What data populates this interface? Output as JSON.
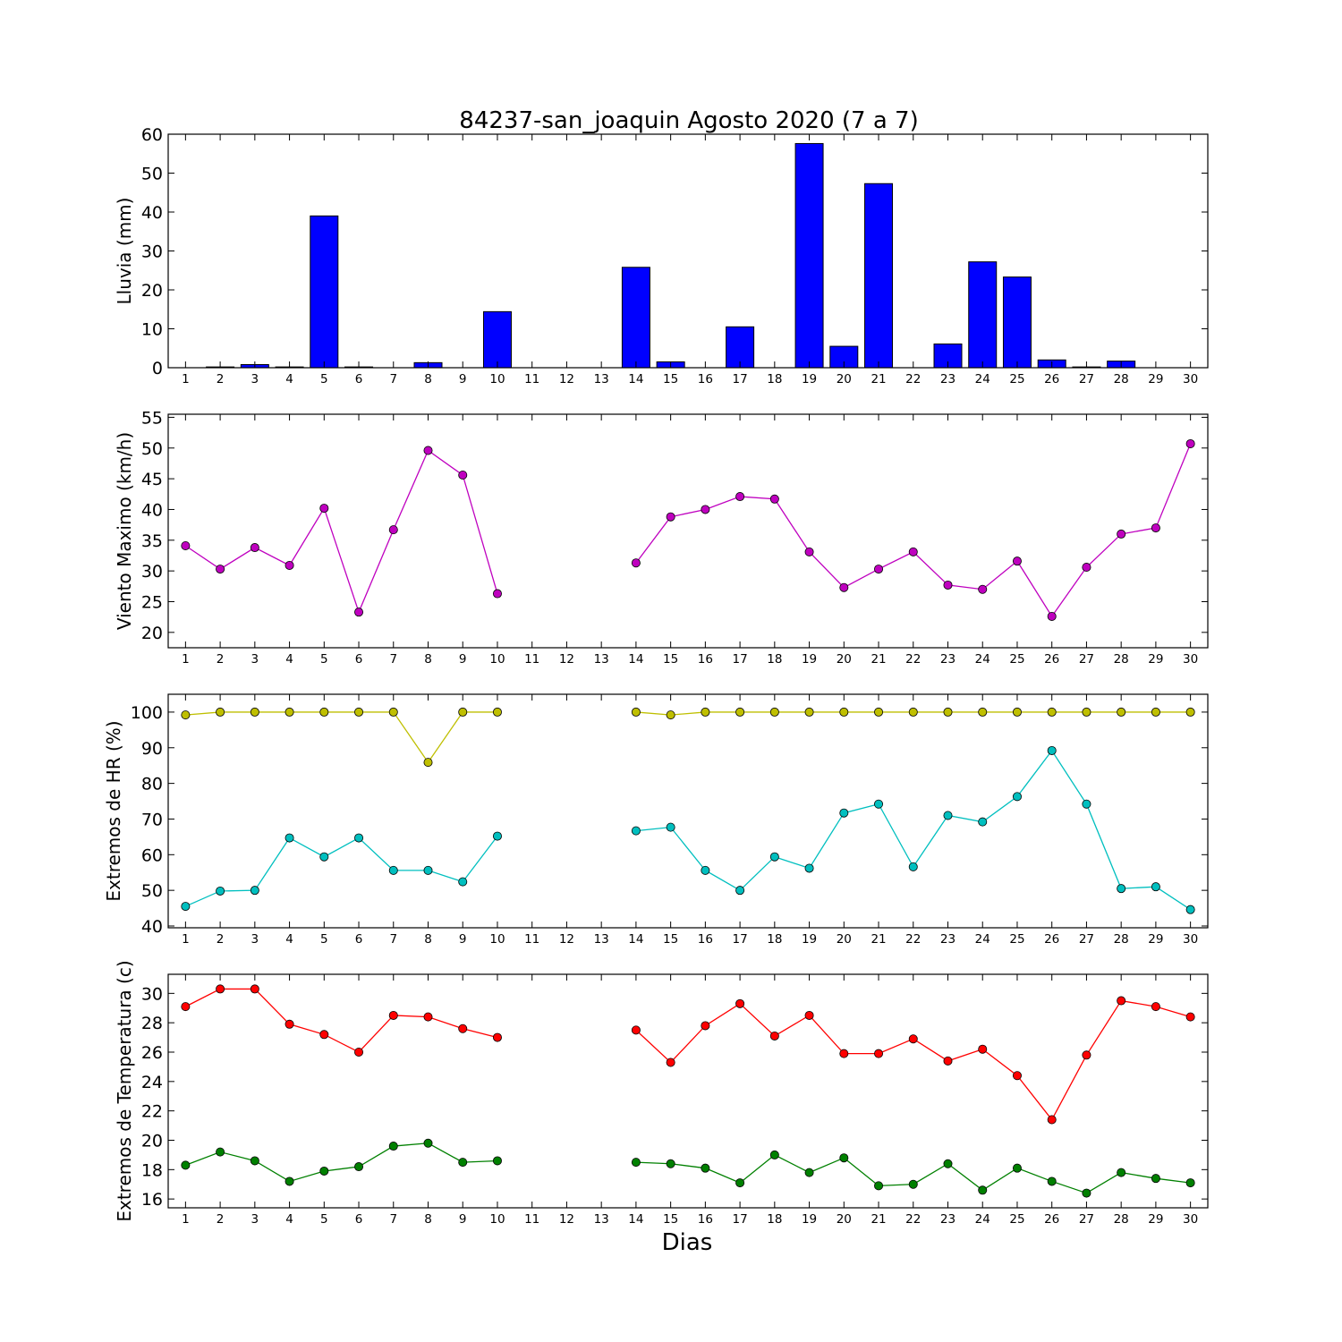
{
  "chart_data": {
    "title": "84237-san_joaquin Agosto 2020  (7 a 7)",
    "xlabel": "Dias",
    "days": [
      1,
      2,
      3,
      4,
      5,
      6,
      7,
      8,
      9,
      10,
      11,
      12,
      13,
      14,
      15,
      16,
      17,
      18,
      19,
      20,
      21,
      22,
      23,
      24,
      25,
      26,
      27,
      28,
      29,
      30
    ],
    "panels": [
      {
        "id": "lluvia",
        "type": "bar",
        "ylabel": "Lluvia (mm)",
        "ylim": [
          0,
          60
        ],
        "yticks": [
          0,
          10,
          20,
          30,
          40,
          50,
          60
        ],
        "series": [
          {
            "color": "#0000ff",
            "values": [
              0.0,
              0.2,
              0.8,
              0.2,
              39.0,
              0.2,
              0.0,
              1.3,
              0.0,
              14.4,
              0.0,
              0.0,
              0.0,
              25.8,
              1.5,
              0.0,
              10.5,
              0.0,
              57.6,
              5.5,
              47.3,
              0.0,
              6.1,
              27.2,
              23.3,
              2.0,
              0.2,
              1.7,
              0.0,
              0.0
            ]
          }
        ]
      },
      {
        "id": "viento",
        "type": "line",
        "ylabel": "Viento Maximo (km/h)",
        "ylim": [
          17.5,
          55.5
        ],
        "yticks": [
          20,
          25,
          30,
          35,
          40,
          45,
          50,
          55
        ],
        "series": [
          {
            "color": "#bf00bf",
            "values": [
              34.1,
              30.3,
              33.8,
              30.9,
              40.2,
              23.3,
              36.7,
              49.6,
              45.6,
              26.3,
              null,
              null,
              null,
              31.3,
              38.8,
              40.0,
              42.1,
              41.7,
              33.1,
              27.3,
              30.3,
              33.1,
              27.7,
              27.0,
              31.6,
              22.6,
              30.6,
              36.0,
              37.0,
              50.7
            ]
          }
        ]
      },
      {
        "id": "hr",
        "type": "line",
        "ylabel": "Extremos de HR (%)",
        "ylim": [
          39.5,
          105
        ],
        "yticks": [
          40,
          50,
          60,
          70,
          80,
          90,
          100
        ],
        "series": [
          {
            "color": "#bfbf00",
            "values": [
              99.2,
              100,
              100,
              100,
              100,
              100,
              100,
              85.9,
              100,
              100,
              null,
              null,
              null,
              100,
              99.2,
              100,
              100,
              100,
              100,
              100,
              100,
              100,
              100,
              100,
              100,
              100,
              100,
              100,
              100,
              100
            ]
          },
          {
            "color": "#00bfbf",
            "values": [
              45.5,
              49.8,
              50.0,
              64.7,
              59.4,
              64.7,
              55.6,
              55.6,
              52.4,
              65.2,
              null,
              null,
              null,
              66.7,
              67.7,
              55.6,
              50.0,
              59.4,
              56.2,
              71.7,
              74.2,
              56.6,
              71.0,
              69.2,
              76.3,
              89.2,
              74.2,
              50.5,
              51.0,
              44.6
            ]
          }
        ]
      },
      {
        "id": "temp",
        "type": "line",
        "ylabel": "Extremos de Temperatura (c)",
        "ylim": [
          15.4,
          31.3
        ],
        "yticks": [
          16,
          18,
          20,
          22,
          24,
          26,
          28,
          30
        ],
        "series": [
          {
            "color": "#ff0000",
            "values": [
              29.1,
              30.3,
              30.3,
              27.9,
              27.2,
              26.0,
              28.5,
              28.4,
              27.6,
              27.0,
              null,
              null,
              null,
              27.5,
              25.3,
              27.8,
              29.3,
              27.1,
              28.5,
              25.9,
              25.9,
              26.9,
              25.4,
              26.2,
              24.4,
              21.4,
              25.8,
              29.5,
              29.1,
              28.4
            ]
          },
          {
            "color": "#008000",
            "values": [
              18.3,
              19.2,
              18.6,
              17.2,
              17.9,
              18.2,
              19.6,
              19.8,
              18.5,
              18.6,
              null,
              null,
              null,
              18.5,
              18.4,
              18.1,
              17.1,
              19.0,
              17.8,
              18.8,
              16.9,
              17.0,
              18.4,
              16.6,
              18.1,
              17.2,
              16.4,
              17.8,
              17.4,
              17.1
            ]
          }
        ]
      }
    ]
  }
}
